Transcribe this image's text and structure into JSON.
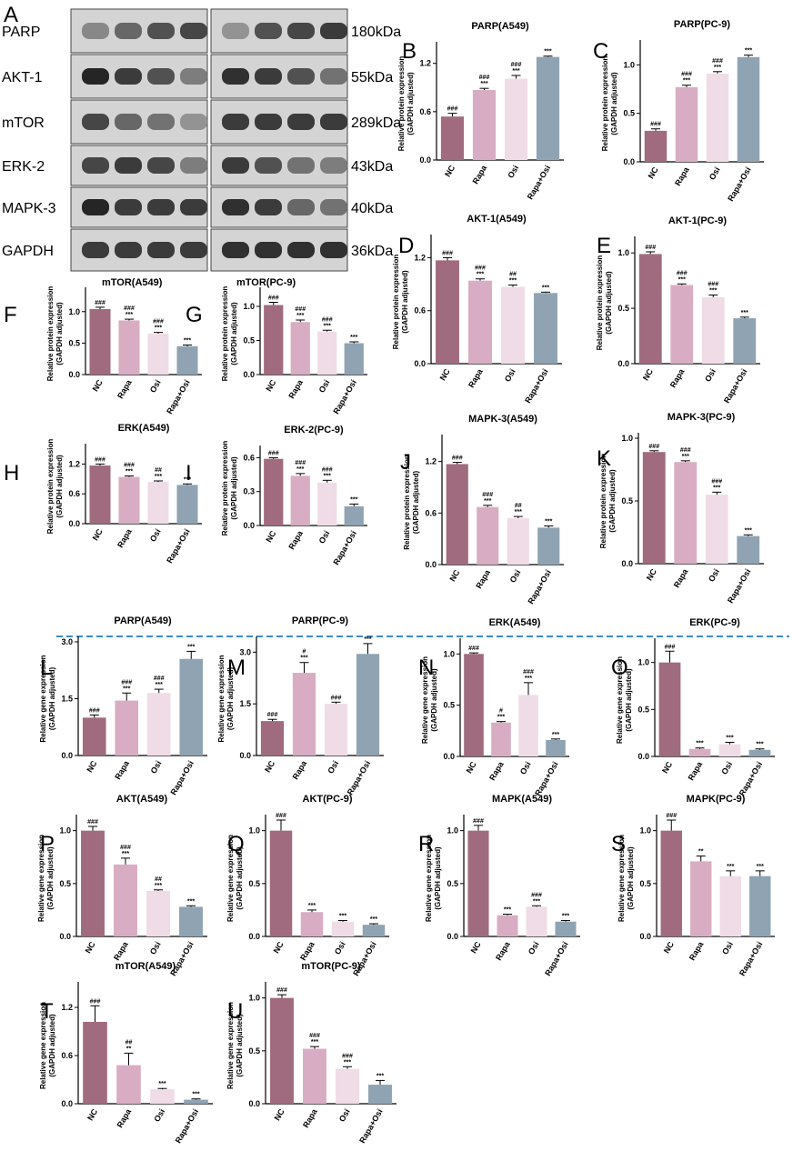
{
  "colors": {
    "NC": "#a06b7e",
    "Rapa": "#d8adc3",
    "Osi": "#f0dce6",
    "Rapa+Osi": "#8fa3b3",
    "divider": "#3d8bcd"
  },
  "blot": {
    "letter": "A",
    "rows": [
      {
        "label": "PARP",
        "kda": "180kDa"
      },
      {
        "label": "AKT-1",
        "kda": "55kDa"
      },
      {
        "label": "mTOR",
        "kda": "289kDa"
      },
      {
        "label": "ERK-2",
        "kda": "43kDa"
      },
      {
        "label": "MAPK-3",
        "kda": "40kDa"
      },
      {
        "label": "GAPDH",
        "kda": "36kDa"
      }
    ],
    "left_caption": "mTOR(A549)",
    "right_caption": "mTOR(PC-9)"
  },
  "chart_data": [
    {
      "id": "B",
      "type": "bar",
      "title": "PARP(A549)",
      "ylabel": [
        "Relative protein expression",
        "(GAPDH adjusted)"
      ],
      "categories": [
        "NC",
        "Rapa",
        "Osi",
        "Rapa+Osi"
      ],
      "values": [
        0.54,
        0.87,
        1.01,
        1.28
      ],
      "errors": [
        0.04,
        0.02,
        0.04,
        0.01
      ],
      "ylim": [
        0,
        1.4
      ],
      "yticks": [
        "0.0",
        "0.6",
        "1.2"
      ],
      "sig_top": [
        "###",
        "###",
        "###",
        "***"
      ],
      "sig_bottom": [
        "",
        "***",
        "***",
        ""
      ]
    },
    {
      "id": "C",
      "type": "bar",
      "title": "PARP(PC-9)",
      "ylabel": [
        "Relative protein expression",
        "(GAPDH adjusted)"
      ],
      "categories": [
        "NC",
        "Rapa",
        "Osi",
        "Rapa+Osi"
      ],
      "values": [
        0.32,
        0.77,
        0.91,
        1.08
      ],
      "errors": [
        0.02,
        0.02,
        0.02,
        0.02
      ],
      "ylim": [
        0,
        1.2
      ],
      "yticks": [
        "0.0",
        "0.5",
        "1.0"
      ],
      "sig_top": [
        "###",
        "###",
        "###",
        "***"
      ],
      "sig_bottom": [
        "",
        "***",
        "***",
        ""
      ]
    },
    {
      "id": "D",
      "type": "bar",
      "title": "AKT-1(A549)",
      "ylabel": [
        "Relative protein expression",
        "(GAPDH adjusted)"
      ],
      "categories": [
        "NC",
        "Rapa",
        "Osi",
        "Rapa+Osi"
      ],
      "values": [
        1.17,
        0.94,
        0.87,
        0.8
      ],
      "errors": [
        0.03,
        0.02,
        0.02,
        0.01
      ],
      "ylim": [
        0,
        1.4
      ],
      "yticks": [
        "0.0",
        "0.6",
        "1.2"
      ],
      "sig_top": [
        "###",
        "###",
        "##",
        "***"
      ],
      "sig_bottom": [
        "",
        "***",
        "***",
        ""
      ]
    },
    {
      "id": "E",
      "type": "bar",
      "title": "AKT-1(PC-9)",
      "ylabel": [
        "Relative protein expression",
        "(GAPDH adjusted)"
      ],
      "categories": [
        "NC",
        "Rapa",
        "Osi",
        "Rapa+Osi"
      ],
      "values": [
        0.99,
        0.71,
        0.6,
        0.41
      ],
      "errors": [
        0.02,
        0.01,
        0.02,
        0.01
      ],
      "ylim": [
        0,
        1.1
      ],
      "yticks": [
        "0.0",
        "0.5",
        "1.0"
      ],
      "sig_top": [
        "###",
        "###",
        "###",
        "***"
      ],
      "sig_bottom": [
        "",
        "***",
        "***",
        ""
      ]
    },
    {
      "id": "F",
      "type": "bar",
      "title": "",
      "ylabel": [
        "Relative protein expression",
        "(GAPDH adjusted)"
      ],
      "categories": [
        "NC",
        "Rapa",
        "Osi",
        "Rapa+Osi"
      ],
      "values": [
        1.04,
        0.86,
        0.65,
        0.45
      ],
      "errors": [
        0.03,
        0.02,
        0.02,
        0.02
      ],
      "ylim": [
        0,
        1.3
      ],
      "yticks": [
        "0.0",
        "0.5",
        "1.0"
      ],
      "sig_top": [
        "###",
        "###",
        "###",
        "***"
      ],
      "sig_bottom": [
        "",
        "***",
        "***",
        ""
      ]
    },
    {
      "id": "G",
      "type": "bar",
      "title": "",
      "ylabel": [
        "Relative protein expression",
        "(GAPDH adjusted)"
      ],
      "categories": [
        "NC",
        "Rapa",
        "Osi",
        "Rapa+Osi"
      ],
      "values": [
        1.02,
        0.77,
        0.63,
        0.46
      ],
      "errors": [
        0.04,
        0.03,
        0.02,
        0.02
      ],
      "ylim": [
        0,
        1.2
      ],
      "yticks": [
        "0.0",
        "0.5",
        "1.0"
      ],
      "sig_top": [
        "###",
        "###",
        "###",
        "***"
      ],
      "sig_bottom": [
        "",
        "***",
        "***",
        ""
      ]
    },
    {
      "id": "H",
      "type": "bar",
      "title": "ERK(A549)",
      "ylabel": [
        "Relative protein expression",
        "(GAPDH adjusted)"
      ],
      "categories": [
        "NC",
        "Rapa",
        "Osi",
        "Rapa+Osi"
      ],
      "values": [
        1.17,
        0.94,
        0.84,
        0.78
      ],
      "errors": [
        0.03,
        0.02,
        0.02,
        0.02
      ],
      "ylim": [
        0,
        1.5
      ],
      "yticks": [
        "0.0",
        "0.6",
        "1.2"
      ],
      "sig_top": [
        "###",
        "###",
        "##",
        "***"
      ],
      "sig_bottom": [
        "",
        "***",
        "***",
        ""
      ]
    },
    {
      "id": "I",
      "type": "bar",
      "title": "ERK-2(PC-9)",
      "ylabel": [
        "Relative protein expression",
        "(GAPDH adjusted)"
      ],
      "categories": [
        "NC",
        "Rapa",
        "Osi",
        "Rapa+Osi"
      ],
      "values": [
        0.59,
        0.44,
        0.38,
        0.17
      ],
      "errors": [
        0.01,
        0.02,
        0.02,
        0.02
      ],
      "ylim": [
        0,
        0.66
      ],
      "yticks": [
        "0.0",
        "0.3",
        "0.6"
      ],
      "sig_top": [
        "###",
        "###",
        "###",
        "***"
      ],
      "sig_bottom": [
        "",
        "***",
        "***",
        ""
      ]
    },
    {
      "id": "J",
      "type": "bar",
      "title": "MAPK-3(A549)",
      "ylabel": [
        "Relative protein expression",
        "(GAPDH adjusted)"
      ],
      "categories": [
        "NC",
        "Rapa",
        "Osi",
        "Rapa+Osi"
      ],
      "values": [
        1.17,
        0.67,
        0.54,
        0.43
      ],
      "errors": [
        0.02,
        0.02,
        0.02,
        0.02
      ],
      "ylim": [
        0,
        1.45
      ],
      "yticks": [
        "0.0",
        "0.6",
        "1.2"
      ],
      "sig_top": [
        "###",
        "###",
        "##",
        "***"
      ],
      "sig_bottom": [
        "",
        "***",
        "***",
        ""
      ]
    },
    {
      "id": "K",
      "type": "bar",
      "title": "MAPK-3(PC-9)",
      "ylabel": [
        "Relative protein expression",
        "(GAPDH adjusted)"
      ],
      "categories": [
        "NC",
        "Rapa",
        "Osi",
        "Rapa+Osi"
      ],
      "values": [
        0.89,
        0.81,
        0.55,
        0.22
      ],
      "errors": [
        0.01,
        0.01,
        0.02,
        0.01
      ],
      "ylim": [
        0,
        1.0
      ],
      "yticks": [
        "0.0",
        "0.5",
        "1.0"
      ],
      "sig_top": [
        "###",
        "###",
        "###",
        "***"
      ],
      "sig_bottom": [
        "",
        "***",
        "***",
        ""
      ]
    },
    {
      "id": "L",
      "type": "bar",
      "title": "PARP(A549)",
      "ylabel": [
        "Relative gene expression",
        "(GAPDH adjusted)"
      ],
      "categories": [
        "NC",
        "Rapa",
        "Osi",
        "Rapa+Osi"
      ],
      "values": [
        1.0,
        1.45,
        1.65,
        2.55
      ],
      "errors": [
        0.07,
        0.2,
        0.1,
        0.2
      ],
      "ylim": [
        0,
        3.0
      ],
      "yticks": [
        "0.0",
        "1.5",
        "3.0"
      ],
      "sig_top": [
        "###",
        "###",
        "###",
        "***"
      ],
      "sig_bottom": [
        "",
        "***",
        "***",
        ""
      ]
    },
    {
      "id": "M",
      "type": "bar",
      "title": "PARP(PC-9)",
      "ylabel": [
        "Relative gene expression",
        "(GAPDH adjusted)"
      ],
      "categories": [
        "NC",
        "Rapa",
        "Osi",
        "Rapa+Osi"
      ],
      "values": [
        1.0,
        2.4,
        1.5,
        2.95
      ],
      "errors": [
        0.05,
        0.3,
        0.05,
        0.3
      ],
      "ylim": [
        0,
        3.3
      ],
      "yticks": [
        "0.0",
        "1.5",
        "3.0"
      ],
      "sig_top": [
        "###",
        "#",
        "###",
        "***"
      ],
      "sig_bottom": [
        "",
        "***",
        "",
        ""
      ]
    },
    {
      "id": "N",
      "type": "bar",
      "title": "ERK(A549)",
      "ylabel": [
        "Relative gene expression",
        "(GAPDH adjusted)"
      ],
      "categories": [
        "NC",
        "Rapa",
        "Osi",
        "Rapa+Osi"
      ],
      "values": [
        1.0,
        0.33,
        0.6,
        0.16
      ],
      "errors": [
        0.01,
        0.01,
        0.12,
        0.01
      ],
      "ylim": [
        0,
        1.1
      ],
      "yticks": [
        "0.0",
        "0.5",
        "1.0"
      ],
      "sig_top": [
        "###",
        "#",
        "###",
        "***"
      ],
      "sig_bottom": [
        "",
        "***",
        "***",
        ""
      ]
    },
    {
      "id": "O",
      "type": "bar",
      "title": "ERK(PC-9)",
      "ylabel": [
        "Relative gene expression",
        "(GAPDH adjusted)"
      ],
      "categories": [
        "NC",
        "Rapa",
        "Osi",
        "Rapa+Osi"
      ],
      "values": [
        1.0,
        0.08,
        0.13,
        0.07
      ],
      "errors": [
        0.12,
        0.01,
        0.02,
        0.01
      ],
      "ylim": [
        0,
        1.2
      ],
      "yticks": [
        "0.0",
        "0.5",
        "1.0"
      ],
      "sig_top": [
        "###",
        "***",
        "***",
        "***"
      ],
      "sig_bottom": [
        "",
        "",
        "",
        ""
      ]
    },
    {
      "id": "P",
      "type": "bar",
      "title": "AKT(A549)",
      "ylabel": [
        "Relative gene expression",
        "(GAPDH adjusted)"
      ],
      "categories": [
        "NC",
        "Rapa",
        "Osi",
        "Rapa+Osi"
      ],
      "values": [
        1.0,
        0.68,
        0.43,
        0.28
      ],
      "errors": [
        0.04,
        0.06,
        0.01,
        0.01
      ],
      "ylim": [
        0,
        1.1
      ],
      "yticks": [
        "0.0",
        "0.5",
        "1.0"
      ],
      "sig_top": [
        "###",
        "###",
        "##",
        "***"
      ],
      "sig_bottom": [
        "",
        "***",
        "***",
        ""
      ]
    },
    {
      "id": "Q",
      "type": "bar",
      "title": "AKT(PC-9)",
      "ylabel": [
        "Relative gene expression",
        "(GAPDH adjusted)"
      ],
      "categories": [
        "NC",
        "Rapa",
        "Osi",
        "Rapa+Osi"
      ],
      "values": [
        1.0,
        0.23,
        0.14,
        0.11
      ],
      "errors": [
        0.1,
        0.02,
        0.01,
        0.01
      ],
      "ylim": [
        0,
        1.1
      ],
      "yticks": [
        "0.0",
        "0.5",
        "1.0"
      ],
      "sig_top": [
        "###",
        "***",
        "***",
        "***"
      ],
      "sig_bottom": [
        "",
        "",
        "",
        ""
      ]
    },
    {
      "id": "R",
      "type": "bar",
      "title": "MAPK(A549)",
      "ylabel": [
        "Relative gene expression",
        "(GAPDH adjusted)"
      ],
      "categories": [
        "NC",
        "Rapa",
        "Osi",
        "Rapa+Osi"
      ],
      "values": [
        1.0,
        0.2,
        0.28,
        0.14
      ],
      "errors": [
        0.05,
        0.01,
        0.01,
        0.01
      ],
      "ylim": [
        0,
        1.1
      ],
      "yticks": [
        "0.0",
        "0.5",
        "1.0"
      ],
      "sig_top": [
        "###",
        "***",
        "###",
        "***"
      ],
      "sig_bottom": [
        "",
        "",
        "***",
        ""
      ]
    },
    {
      "id": "S",
      "type": "bar",
      "title": "MAPK(PC-9)",
      "ylabel": [
        "Relative gene expression",
        "(GAPDH adjusted)"
      ],
      "categories": [
        "NC",
        "Rapa",
        "Osi",
        "Rapa+Osi"
      ],
      "values": [
        1.0,
        0.71,
        0.57,
        0.57
      ],
      "errors": [
        0.1,
        0.05,
        0.05,
        0.05
      ],
      "ylim": [
        0,
        1.1
      ],
      "yticks": [
        "0.0",
        "0.5",
        "1.0"
      ],
      "sig_top": [
        "###",
        "**",
        "***",
        "***"
      ],
      "sig_bottom": [
        "",
        "",
        "",
        ""
      ]
    },
    {
      "id": "T",
      "type": "bar",
      "title": "mTOR(A549)",
      "ylabel": [
        "Relative gene expression",
        "(GAPDH adjusted)"
      ],
      "categories": [
        "NC",
        "Rapa",
        "Osi",
        "Rapa+Osi"
      ],
      "values": [
        1.02,
        0.48,
        0.18,
        0.05
      ],
      "errors": [
        0.2,
        0.15,
        0.01,
        0.01
      ],
      "ylim": [
        0,
        1.45
      ],
      "yticks": [
        "0.0",
        "0.6",
        "1.2"
      ],
      "sig_top": [
        "###",
        "##",
        "***",
        "***"
      ],
      "sig_bottom": [
        "",
        "**",
        "",
        ""
      ]
    },
    {
      "id": "U",
      "type": "bar",
      "title": "mTOR(PC-9)",
      "ylabel": [
        "Relative gene expression",
        "(GAPDH adjusted)"
      ],
      "categories": [
        "NC",
        "Rapa",
        "Osi",
        "Rapa+Osi"
      ],
      "values": [
        1.0,
        0.52,
        0.33,
        0.18
      ],
      "errors": [
        0.03,
        0.02,
        0.02,
        0.04
      ],
      "ylim": [
        0,
        1.1
      ],
      "yticks": [
        "0.0",
        "0.5",
        "1.0"
      ],
      "sig_top": [
        "###",
        "###",
        "###",
        "***"
      ],
      "sig_bottom": [
        "",
        "***",
        "***",
        ""
      ]
    }
  ]
}
